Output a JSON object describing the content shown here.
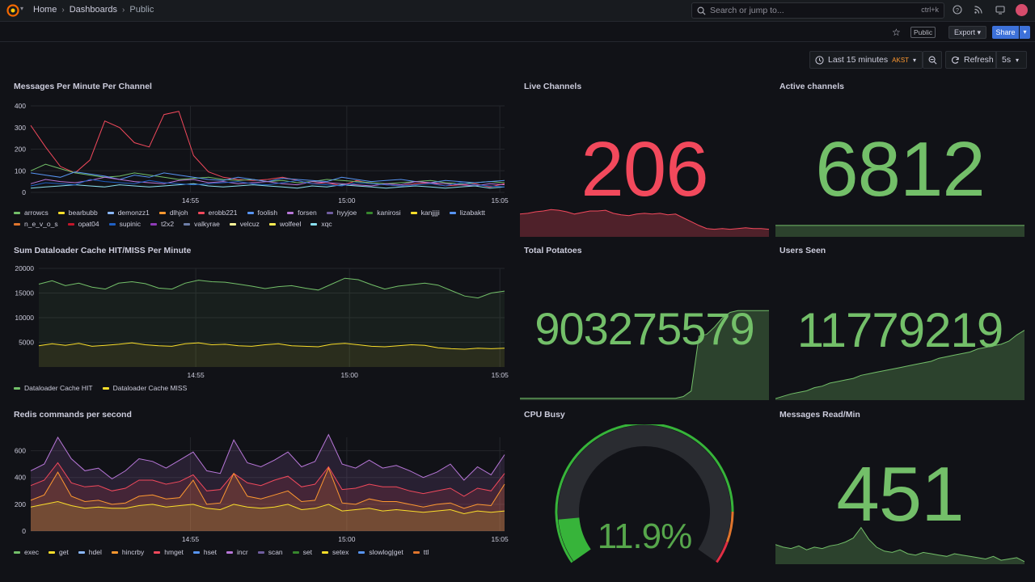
{
  "topbar": {
    "breadcrumbs": [
      "Home",
      "Dashboards",
      "Public"
    ],
    "search_placeholder": "Search or jump to...",
    "search_shortcut": "ctrl+k"
  },
  "subbar": {
    "public_badge": "Public",
    "export_label": "Export",
    "share_label": "Share"
  },
  "toolbar": {
    "time_range": "Last 15 minutes",
    "timezone": "AKST",
    "refresh_label": "Refresh",
    "refresh_interval": "5s"
  },
  "colors": {
    "green": "#73bf69",
    "red": "#f2495c",
    "yellow": "#fade2a",
    "blue": "#5794f2",
    "orange": "#ff9830",
    "purple": "#b877d9",
    "accent": "#3d71d9"
  },
  "panels": {
    "messages_per_minute": {
      "title": "Messages Per Minute Per Channel",
      "legend": [
        {
          "name": "arrowcs",
          "color": "#73bf69"
        },
        {
          "name": "bearbubb",
          "color": "#fade2a"
        },
        {
          "name": "demonzz1",
          "color": "#8ab8ff"
        },
        {
          "name": "dlhjoh",
          "color": "#ff9830"
        },
        {
          "name": "erobb221",
          "color": "#f2495c"
        },
        {
          "name": "foolish",
          "color": "#5794f2"
        },
        {
          "name": "forsen",
          "color": "#b877d9"
        },
        {
          "name": "hyyjoe",
          "color": "#705da0"
        },
        {
          "name": "kanirosi",
          "color": "#37872d"
        },
        {
          "name": "kanjjjji",
          "color": "#fade2a"
        },
        {
          "name": "lizabaktt",
          "color": "#5794f2"
        },
        {
          "name": "n_e_v_o_s",
          "color": "#e0752d"
        },
        {
          "name": "opat04",
          "color": "#c4162a"
        },
        {
          "name": "supinic",
          "color": "#1f60c4"
        },
        {
          "name": "t2x2",
          "color": "#8f3bb8"
        },
        {
          "name": "valkyrae",
          "color": "#6e7ea8"
        },
        {
          "name": "velcuz",
          "color": "#fff899"
        },
        {
          "name": "wolfeel",
          "color": "#ffee52"
        },
        {
          "name": "xqc",
          "color": "#8ae0f0"
        }
      ]
    },
    "live_channels": {
      "title": "Live Channels",
      "value": "206",
      "color": "#f2495c"
    },
    "active_channels": {
      "title": "Active channels",
      "value": "6812",
      "color": "#73bf69"
    },
    "dataloader": {
      "title": "Sum Dataloader Cache HIT/MISS Per Minute",
      "legend": [
        {
          "name": "Dataloader Cache HIT",
          "color": "#73bf69"
        },
        {
          "name": "Dataloader Cache MISS",
          "color": "#fade2a"
        }
      ]
    },
    "total_potatoes": {
      "title": "Total Potatoes",
      "value": "903275579",
      "color": "#73bf69"
    },
    "users_seen": {
      "title": "Users Seen",
      "value": "11779219",
      "color": "#73bf69"
    },
    "redis": {
      "title": "Redis commands per second",
      "legend": [
        {
          "name": "exec",
          "color": "#73bf69"
        },
        {
          "name": "get",
          "color": "#fade2a"
        },
        {
          "name": "hdel",
          "color": "#8ab8ff"
        },
        {
          "name": "hincrby",
          "color": "#ff9830"
        },
        {
          "name": "hmget",
          "color": "#f2495c"
        },
        {
          "name": "hset",
          "color": "#5794f2"
        },
        {
          "name": "incr",
          "color": "#b877d9"
        },
        {
          "name": "scan",
          "color": "#705da0"
        },
        {
          "name": "set",
          "color": "#37872d"
        },
        {
          "name": "setex",
          "color": "#fade2a"
        },
        {
          "name": "slowlog|get",
          "color": "#5794f2"
        },
        {
          "name": "ttl",
          "color": "#e0752d"
        }
      ]
    },
    "cpu_busy": {
      "title": "CPU Busy",
      "value": "11.9%",
      "percent": 11.9,
      "color": "#56a64b"
    },
    "messages_read": {
      "title": "Messages Read/Min",
      "value": "451",
      "color": "#73bf69"
    }
  },
  "chart_data": [
    {
      "type": "line",
      "title": "Messages Per Minute Per Channel",
      "x_ticks": [
        "14:55",
        "15:00",
        "15:05"
      ],
      "y_ticks": [
        0,
        100,
        200,
        300,
        400
      ],
      "ylim": [
        0,
        400
      ],
      "series": [
        {
          "name": "erobb221",
          "values": [
            310,
            210,
            120,
            90,
            150,
            330,
            300,
            230,
            210,
            360,
            375,
            170,
            95,
            70,
            60,
            55,
            60,
            70,
            55,
            40,
            45,
            30,
            55,
            40,
            35,
            30,
            40,
            45,
            30,
            35,
            40,
            25,
            40
          ]
        },
        {
          "name": "arrowcs",
          "values": [
            100,
            130,
            110,
            90,
            80,
            70,
            75,
            90,
            80,
            70,
            60,
            65,
            70,
            60,
            55,
            60,
            50,
            55,
            45,
            50,
            60,
            55,
            50,
            45,
            40,
            45,
            50,
            55,
            45,
            40,
            45,
            50,
            45
          ]
        },
        {
          "name": "lizabaktt",
          "values": [
            90,
            80,
            70,
            95,
            85,
            75,
            60,
            80,
            70,
            90,
            80,
            70,
            60,
            55,
            70,
            60,
            50,
            65,
            60,
            55,
            50,
            70,
            60,
            50,
            55,
            60,
            50,
            45,
            55,
            50,
            45,
            50,
            55
          ]
        },
        {
          "name": "forsen",
          "values": [
            40,
            60,
            50,
            45,
            55,
            70,
            60,
            50,
            45,
            40,
            55,
            60,
            45,
            50,
            40,
            45,
            50,
            40,
            35,
            50,
            45,
            40,
            35,
            30,
            40,
            35,
            50,
            45,
            40,
            35,
            30,
            40,
            35
          ]
        },
        {
          "name": "xqc",
          "values": [
            20,
            25,
            30,
            35,
            30,
            25,
            35,
            30,
            25,
            30,
            35,
            40,
            30,
            25,
            30,
            35,
            30,
            25,
            20,
            30,
            25,
            35,
            30,
            25,
            20,
            25,
            30,
            25,
            20,
            25,
            30,
            20,
            25
          ]
        },
        {
          "name": "supinic",
          "values": [
            30,
            45,
            40,
            35,
            60,
            50,
            45,
            40,
            55,
            45,
            40,
            35,
            40,
            45,
            50,
            40,
            35,
            45,
            55,
            40,
            35,
            30,
            45,
            40,
            35,
            30,
            35,
            40,
            30,
            45,
            35,
            30,
            25
          ]
        }
      ]
    },
    {
      "type": "area",
      "title": "Sum Dataloader Cache HIT/MISS Per Minute",
      "x_ticks": [
        "14:55",
        "15:00",
        "15:05"
      ],
      "y_ticks": [
        5000,
        10000,
        15000,
        20000
      ],
      "ylim": [
        0,
        20000
      ],
      "series": [
        {
          "name": "Dataloader Cache HIT",
          "values": [
            16800,
            17500,
            16500,
            17000,
            16200,
            15800,
            17000,
            17300,
            16900,
            16000,
            15800,
            17000,
            17600,
            17300,
            17200,
            16800,
            16400,
            15900,
            16300,
            16500,
            16000,
            15600,
            16800,
            18000,
            17700,
            16700,
            15800,
            16400,
            16700,
            17000,
            16600,
            15500,
            14400,
            14000,
            15000,
            15400
          ]
        },
        {
          "name": "Dataloader Cache MISS",
          "values": [
            4300,
            4700,
            4400,
            4800,
            4200,
            4400,
            4600,
            4900,
            4500,
            4300,
            4200,
            4700,
            4900,
            4500,
            4600,
            4300,
            4200,
            4500,
            4700,
            4300,
            4200,
            4100,
            4600,
            4800,
            4500,
            4200,
            4100,
            4300,
            4500,
            4400,
            3900,
            3700,
            3600,
            3800,
            3700,
            3800
          ]
        }
      ]
    },
    {
      "type": "area",
      "title": "Redis commands per second",
      "x_ticks": [
        "14:55",
        "15:00",
        "15:05"
      ],
      "y_ticks": [
        0,
        200,
        400,
        600
      ],
      "ylim": [
        0,
        700
      ],
      "series": [
        {
          "name": "incr",
          "values": [
            450,
            500,
            700,
            540,
            450,
            470,
            390,
            450,
            540,
            520,
            470,
            530,
            590,
            450,
            430,
            680,
            510,
            480,
            530,
            590,
            480,
            520,
            720,
            500,
            470,
            530,
            470,
            490,
            450,
            400,
            440,
            500,
            380,
            480,
            420,
            570
          ]
        },
        {
          "name": "hmget",
          "values": [
            340,
            380,
            510,
            360,
            330,
            340,
            300,
            320,
            380,
            380,
            350,
            370,
            420,
            300,
            310,
            430,
            360,
            340,
            380,
            410,
            330,
            350,
            480,
            310,
            320,
            350,
            330,
            330,
            300,
            280,
            300,
            320,
            260,
            320,
            300,
            430
          ]
        },
        {
          "name": "hincrby",
          "values": [
            230,
            270,
            440,
            260,
            220,
            230,
            200,
            210,
            260,
            270,
            240,
            250,
            380,
            200,
            210,
            430,
            260,
            240,
            270,
            300,
            220,
            230,
            470,
            210,
            200,
            240,
            220,
            220,
            200,
            180,
            200,
            210,
            170,
            200,
            190,
            350
          ]
        },
        {
          "name": "get",
          "values": [
            180,
            200,
            220,
            190,
            170,
            180,
            170,
            170,
            190,
            200,
            180,
            190,
            200,
            170,
            160,
            200,
            180,
            170,
            180,
            200,
            160,
            170,
            200,
            150,
            160,
            170,
            150,
            160,
            150,
            140,
            150,
            160,
            130,
            150,
            140,
            150
          ]
        }
      ]
    },
    {
      "type": "area",
      "title": "Live Channels",
      "series": [
        {
          "name": "",
          "values": [
            60,
            62,
            66,
            68,
            72,
            70,
            66,
            60,
            64,
            68,
            68,
            70,
            62,
            58,
            56,
            60,
            62,
            60,
            62,
            58,
            60,
            50,
            40,
            30,
            22,
            20,
            22,
            20,
            22,
            24,
            22,
            22,
            20
          ]
        }
      ]
    },
    {
      "type": "area",
      "title": "Active channels",
      "series": [
        {
          "name": "",
          "values": [
            30,
            30,
            30,
            30,
            30,
            30,
            30,
            30,
            30,
            30,
            30,
            30,
            30,
            30,
            30,
            30,
            30,
            30,
            30,
            30,
            30,
            30,
            30,
            30,
            30,
            30,
            30,
            30,
            30,
            30,
            30,
            30,
            30
          ]
        }
      ]
    },
    {
      "type": "area",
      "title": "Total Potatoes",
      "series": [
        {
          "name": "",
          "values": [
            2,
            2,
            2,
            2,
            2,
            2,
            2,
            2,
            2,
            2,
            2,
            2,
            2,
            2,
            2,
            2,
            2,
            2,
            2,
            2,
            2,
            4,
            10,
            70,
            72,
            80,
            90,
            96,
            98,
            98,
            98,
            98,
            98
          ]
        }
      ]
    },
    {
      "type": "area",
      "title": "Users Seen",
      "series": [
        {
          "name": "",
          "values": [
            2,
            5,
            8,
            10,
            12,
            16,
            18,
            22,
            24,
            26,
            28,
            32,
            34,
            36,
            38,
            40,
            42,
            44,
            46,
            48,
            50,
            54,
            56,
            58,
            60,
            62,
            66,
            68,
            70,
            72,
            76,
            84,
            90
          ]
        }
      ]
    },
    {
      "type": "area",
      "title": "Messages Read/Min",
      "series": [
        {
          "name": "",
          "values": [
            30,
            26,
            24,
            28,
            22,
            26,
            24,
            28,
            30,
            34,
            40,
            56,
            38,
            26,
            20,
            18,
            22,
            16,
            14,
            18,
            16,
            14,
            12,
            16,
            14,
            12,
            10,
            8,
            12,
            6,
            8,
            10,
            4
          ]
        }
      ]
    }
  ]
}
